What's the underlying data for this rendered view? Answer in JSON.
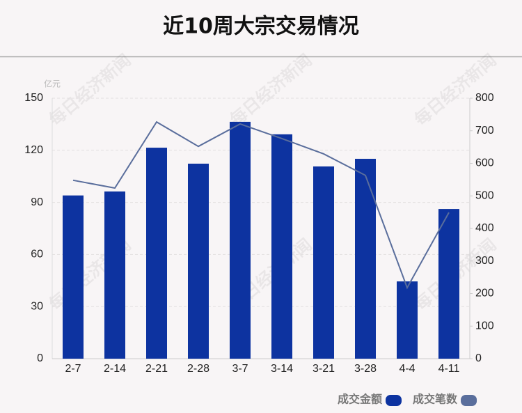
{
  "chart_data": {
    "type": "bar-line",
    "title": "近10周大宗交易情况",
    "y_unit": "亿元",
    "watermark": "每日经济新闻",
    "categories": [
      "2-7",
      "2-14",
      "2-21",
      "2-28",
      "3-7",
      "3-14",
      "3-21",
      "3-28",
      "4-4",
      "4-11"
    ],
    "series": [
      {
        "name": "成交金额",
        "type": "bar",
        "color": "#0d33a0",
        "values": [
          94,
          96.3,
          121.5,
          112.3,
          136.4,
          129.2,
          110.7,
          115.1,
          44.5,
          86.2
        ]
      },
      {
        "name": "成交笔数",
        "type": "line",
        "axis": "y2",
        "color": "#5a6e9c",
        "values": [
          548,
          524,
          727,
          652,
          721,
          676,
          629,
          563,
          218,
          449
        ]
      }
    ],
    "ylim": [
      0,
      150
    ],
    "yticks": [
      0,
      30,
      60,
      90,
      120,
      150
    ],
    "y2lim": [
      0,
      800
    ],
    "y2ticks": [
      0,
      100,
      200,
      300,
      400,
      500,
      600,
      700,
      800
    ],
    "grid": true
  }
}
